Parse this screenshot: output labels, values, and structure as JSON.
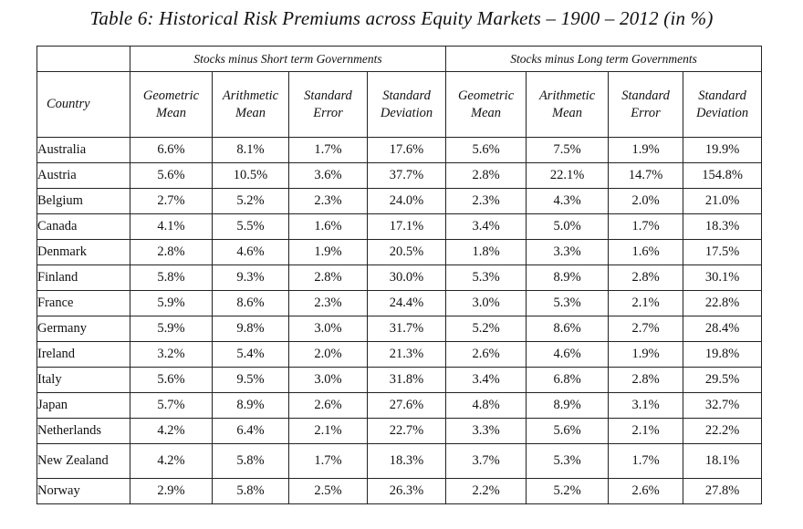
{
  "title": "Table 6: Historical Risk Premiums across Equity Markets – 1900 – 2012 (in %)",
  "groups": [
    "Stocks minus Short term Governments",
    "Stocks minus Long term Governments"
  ],
  "columns": {
    "country": "Country",
    "gm": "Geometric Mean",
    "am": "Arithmetic Mean",
    "se": "Standard Error",
    "sd": "Standard Deviation"
  },
  "rows": [
    {
      "country": "Australia",
      "v": [
        "6.6%",
        "8.1%",
        "1.7%",
        "17.6%",
        "5.6%",
        "7.5%",
        "1.9%",
        "19.9%"
      ]
    },
    {
      "country": "Austria",
      "v": [
        "5.6%",
        "10.5%",
        "3.6%",
        "37.7%",
        "2.8%",
        "22.1%",
        "14.7%",
        "154.8%"
      ]
    },
    {
      "country": "Belgium",
      "v": [
        "2.7%",
        "5.2%",
        "2.3%",
        "24.0%",
        "2.3%",
        "4.3%",
        "2.0%",
        "21.0%"
      ]
    },
    {
      "country": "Canada",
      "v": [
        "4.1%",
        "5.5%",
        "1.6%",
        "17.1%",
        "3.4%",
        "5.0%",
        "1.7%",
        "18.3%"
      ]
    },
    {
      "country": "Denmark",
      "v": [
        "2.8%",
        "4.6%",
        "1.9%",
        "20.5%",
        "1.8%",
        "3.3%",
        "1.6%",
        "17.5%"
      ]
    },
    {
      "country": "Finland",
      "v": [
        "5.8%",
        "9.3%",
        "2.8%",
        "30.0%",
        "5.3%",
        "8.9%",
        "2.8%",
        "30.1%"
      ]
    },
    {
      "country": "France",
      "v": [
        "5.9%",
        "8.6%",
        "2.3%",
        "24.4%",
        "3.0%",
        "5.3%",
        "2.1%",
        "22.8%"
      ]
    },
    {
      "country": "Germany",
      "v": [
        "5.9%",
        "9.8%",
        "3.0%",
        "31.7%",
        "5.2%",
        "8.6%",
        "2.7%",
        "28.4%"
      ]
    },
    {
      "country": "Ireland",
      "v": [
        "3.2%",
        "5.4%",
        "2.0%",
        "21.3%",
        "2.6%",
        "4.6%",
        "1.9%",
        "19.8%"
      ]
    },
    {
      "country": "Italy",
      "v": [
        "5.6%",
        "9.5%",
        "3.0%",
        "31.8%",
        "3.4%",
        "6.8%",
        "2.8%",
        "29.5%"
      ]
    },
    {
      "country": "Japan",
      "v": [
        "5.7%",
        "8.9%",
        "2.6%",
        "27.6%",
        "4.8%",
        "8.9%",
        "3.1%",
        "32.7%"
      ]
    },
    {
      "country": "Netherlands",
      "v": [
        "4.2%",
        "6.4%",
        "2.1%",
        "22.7%",
        "3.3%",
        "5.6%",
        "2.1%",
        "22.2%"
      ]
    },
    {
      "country": "New Zealand",
      "v": [
        "4.2%",
        "5.8%",
        "1.7%",
        "18.3%",
        "3.7%",
        "5.3%",
        "1.7%",
        "18.1%"
      ]
    },
    {
      "country": "Norway",
      "v": [
        "2.9%",
        "5.8%",
        "2.5%",
        "26.3%",
        "2.2%",
        "5.2%",
        "2.6%",
        "27.8%"
      ]
    }
  ]
}
